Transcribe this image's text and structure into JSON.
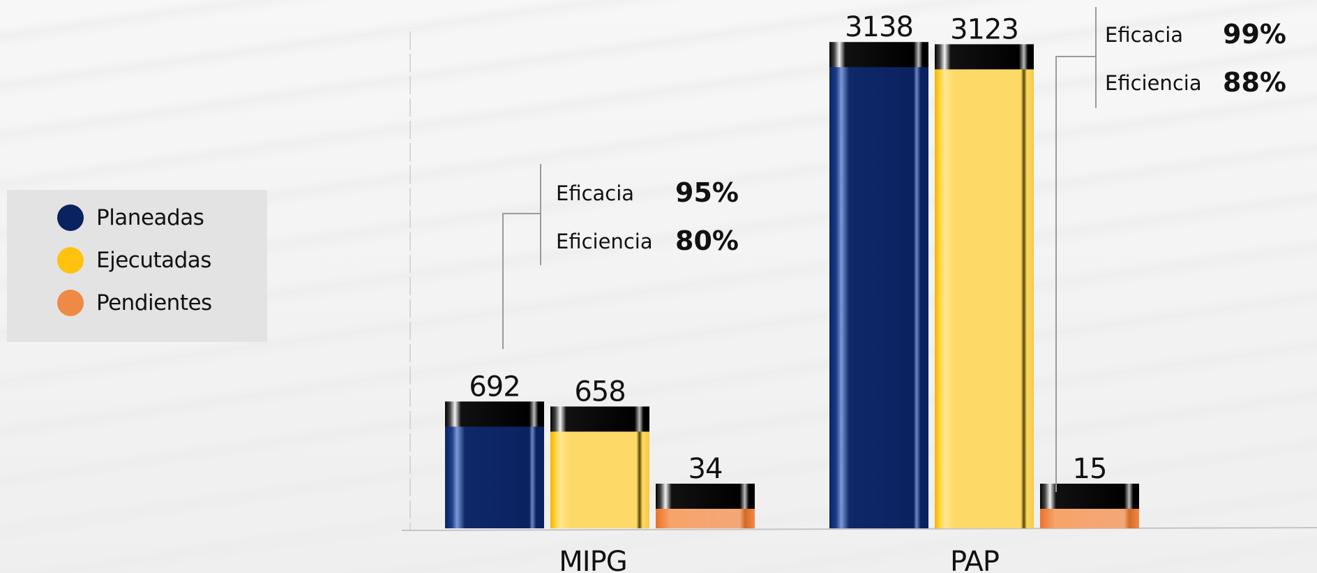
{
  "chart_data": {
    "type": "bar",
    "categories": [
      "MIPG",
      "PAP"
    ],
    "series": [
      {
        "name": "Planeadas",
        "values": [
          692,
          3138
        ],
        "color": "#0b2260"
      },
      {
        "name": "Ejecutadas",
        "values": [
          658,
          3123
        ],
        "color": "#fdd967"
      },
      {
        "name": "Pendientes",
        "values": [
          34,
          15
        ],
        "color": "#ee8a45"
      }
    ],
    "ylim": [
      0,
      3500
    ],
    "legend": {
      "placement": "left",
      "items": [
        {
          "label": "Planeadas",
          "color": "#0b2260"
        },
        {
          "label": "Ejecutadas",
          "color": "#ffc20e"
        },
        {
          "label": "Pendientes",
          "color": "#ee8a45"
        }
      ]
    },
    "annotations": [
      {
        "category": "MIPG",
        "rows": [
          {
            "label": "Eficacia",
            "value": "95%"
          },
          {
            "label": "Eficiencia",
            "value": "80%"
          }
        ]
      },
      {
        "category": "PAP",
        "rows": [
          {
            "label": "Eficacia",
            "value": "99%"
          },
          {
            "label": "Eficiencia",
            "value": "88%"
          }
        ]
      }
    ]
  }
}
